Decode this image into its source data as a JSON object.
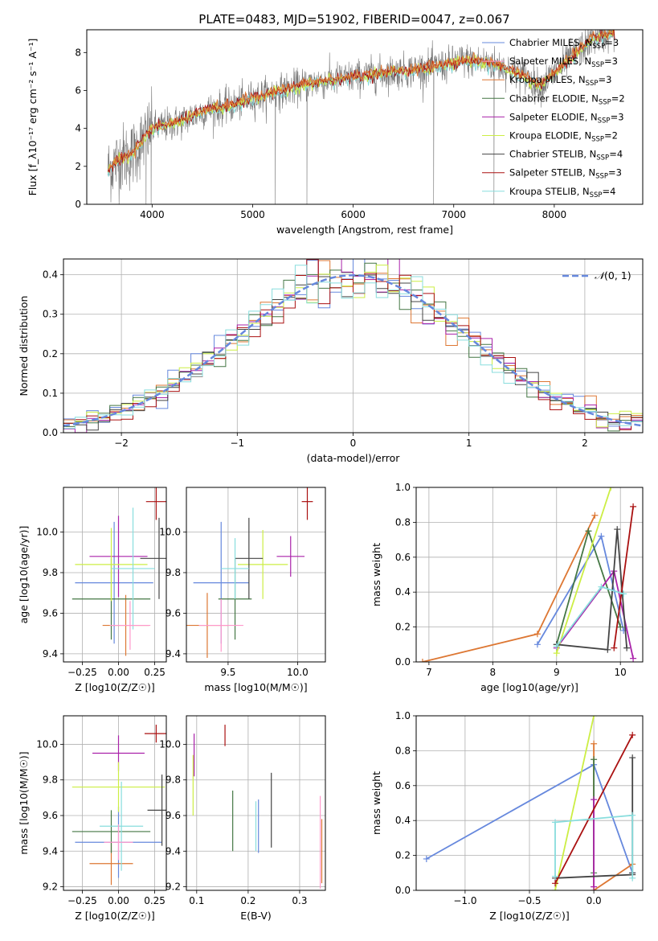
{
  "figure_title": "PLATE=0483, MJD=51902, FIBERID=0047, z=0.067",
  "colors": [
    "#6688dd",
    "#dd7733",
    "#447744",
    "#aa22aa",
    "#ccee44",
    "#444444",
    "#aa1111",
    "#88dddd",
    "#ff99cc",
    "#777777"
  ],
  "chart_data": [
    {
      "id": "spectrum",
      "type": "line",
      "xlabel": "wavelength [Angstrom, rest frame]",
      "ylabel": "Flux [f_λ10⁻¹⁷ erg cm⁻² s⁻¹ A⁻¹]",
      "xlim": [
        3350,
        8880
      ],
      "ylim": [
        0,
        9.2
      ],
      "xticks": [
        4000,
        5000,
        6000,
        7000,
        8000
      ],
      "yticks": [
        0,
        2,
        4,
        6,
        8
      ],
      "continuum_x": [
        3560,
        3700,
        3780,
        3900,
        4000,
        4100,
        4300,
        4500,
        4800,
        5000,
        5300,
        5600,
        6000,
        6300,
        6600,
        6900,
        7100,
        7400,
        7700,
        7850,
        8000,
        8200,
        8400,
        8600
      ],
      "continuum_y": [
        1.8,
        2.5,
        2.5,
        3.3,
        4.0,
        4.1,
        4.4,
        4.9,
        5.2,
        5.6,
        6.0,
        6.4,
        6.7,
        6.9,
        7.1,
        7.3,
        7.6,
        7.4,
        6.8,
        6.2,
        6.9,
        7.9,
        8.8,
        9.0
      ],
      "legend": [
        {
          "imf": "Chabrier",
          "lib": "MILES",
          "n": "3"
        },
        {
          "imf": "Salpeter",
          "lib": "MILES",
          "n": "3"
        },
        {
          "imf": "Kroupa",
          "lib": "MILES",
          "n": "3"
        },
        {
          "imf": "Chabrier",
          "lib": "ELODIE",
          "n": "2"
        },
        {
          "imf": "Salpeter",
          "lib": "ELODIE",
          "n": "3"
        },
        {
          "imf": "Kroupa",
          "lib": "ELODIE",
          "n": "2"
        },
        {
          "imf": "Chabrier",
          "lib": "STELIB",
          "n": "4"
        },
        {
          "imf": "Salpeter",
          "lib": "STELIB",
          "n": "3"
        },
        {
          "imf": "Kroupa",
          "lib": "STELIB",
          "n": "4"
        }
      ],
      "legend_sub": "SSP"
    },
    {
      "id": "residuals",
      "type": "step-histogram",
      "xlabel": "(data-model)/error",
      "ylabel": "Normed distribution",
      "xlim": [
        -2.5,
        2.5
      ],
      "ylim": [
        0,
        0.44
      ],
      "xticks": [
        -2,
        -1,
        0,
        1,
        2
      ],
      "yticks": [
        0.0,
        0.1,
        0.2,
        0.3,
        0.4
      ],
      "bin_width": 0.1,
      "gaussian_label": "N(0, 1)",
      "gaussian_symbol": "𝒩",
      "gaussian_args": "(0, 1)"
    },
    {
      "id": "age_vs_Z",
      "type": "errorbar",
      "xlabel": "Z [log10(Z/Z☉)]",
      "ylabel": "age  [log10(age/yr)]",
      "xlim": [
        -0.38,
        0.33
      ],
      "ylim": [
        9.36,
        10.22
      ],
      "xticks": [
        -0.25,
        0.0,
        0.25
      ],
      "yticks": [
        9.4,
        9.6,
        9.8,
        10.0
      ],
      "points": [
        {
          "c": 0,
          "x": -0.03,
          "y": 9.75,
          "xerr": 0.27,
          "yerr": 0.3
        },
        {
          "c": 1,
          "x": 0.05,
          "y": 9.54,
          "xerr": 0.16,
          "yerr": 0.15
        },
        {
          "c": 2,
          "x": -0.05,
          "y": 9.67,
          "xerr": 0.27,
          "yerr": 0.2
        },
        {
          "c": 3,
          "x": 0.0,
          "y": 9.88,
          "xerr": 0.2,
          "yerr": 0.2
        },
        {
          "c": 4,
          "x": -0.05,
          "y": 9.84,
          "xerr": 0.25,
          "yerr": 0.18
        },
        {
          "c": 5,
          "x": 0.28,
          "y": 9.87,
          "xerr": 0.13,
          "yerr": 0.2
        },
        {
          "c": 6,
          "x": 0.26,
          "y": 10.15,
          "xerr": 0.07,
          "yerr": 0.09
        },
        {
          "c": 7,
          "x": 0.1,
          "y": 9.82,
          "xerr": 0.15,
          "yerr": 0.3
        },
        {
          "c": 8,
          "x": 0.08,
          "y": 9.54,
          "xerr": 0.14,
          "yerr": 0.12
        }
      ]
    },
    {
      "id": "age_vs_mass",
      "type": "errorbar",
      "xlabel": "mass [log10(M/M☉)]",
      "ylabel": "",
      "xlim": [
        9.2,
        10.2
      ],
      "ylim": [
        9.36,
        10.22
      ],
      "xticks": [
        9.5,
        10.0
      ],
      "yticks": [
        9.4,
        9.6,
        9.8,
        10.0
      ],
      "points": [
        {
          "c": 0,
          "x": 9.45,
          "y": 9.75,
          "xerr": 0.2,
          "yerr": 0.3
        },
        {
          "c": 1,
          "x": 9.35,
          "y": 9.54,
          "xerr": 0.15,
          "yerr": 0.16
        },
        {
          "c": 2,
          "x": 9.55,
          "y": 9.67,
          "xerr": 0.12,
          "yerr": 0.2
        },
        {
          "c": 3,
          "x": 9.95,
          "y": 9.88,
          "xerr": 0.1,
          "yerr": 0.1
        },
        {
          "c": 4,
          "x": 9.75,
          "y": 9.84,
          "xerr": 0.18,
          "yerr": 0.17
        },
        {
          "c": 5,
          "x": 9.65,
          "y": 9.87,
          "xerr": 0.1,
          "yerr": 0.2
        },
        {
          "c": 6,
          "x": 10.07,
          "y": 10.15,
          "xerr": 0.04,
          "yerr": 0.09
        },
        {
          "c": 7,
          "x": 9.55,
          "y": 9.82,
          "xerr": 0.1,
          "yerr": 0.15
        },
        {
          "c": 8,
          "x": 9.45,
          "y": 9.54,
          "xerr": 0.16,
          "yerr": 0.13
        }
      ]
    },
    {
      "id": "weight_vs_age",
      "type": "line",
      "xlabel": "age  [log10(age/yr)]",
      "ylabel": "mass weight",
      "xlim": [
        6.8,
        10.35
      ],
      "ylim": [
        0,
        1.0
      ],
      "xticks": [
        7,
        8,
        9,
        10
      ],
      "yticks": [
        0.0,
        0.2,
        0.4,
        0.6,
        0.8,
        1.0
      ],
      "series": [
        {
          "c": 0,
          "x": [
            8.7,
            9.7,
            10.05
          ],
          "y": [
            0.1,
            0.72,
            0.18
          ]
        },
        {
          "c": 1,
          "x": [
            6.9,
            8.7,
            9.6
          ],
          "y": [
            0.0,
            0.16,
            0.84
          ]
        },
        {
          "c": 2,
          "x": [
            9.0,
            9.5,
            10.0
          ],
          "y": [
            0.1,
            0.75,
            0.2
          ]
        },
        {
          "c": 3,
          "x": [
            9.0,
            9.9,
            10.2
          ],
          "y": [
            0.08,
            0.52,
            0.02
          ]
        },
        {
          "c": 4,
          "x": [
            9.0,
            9.85
          ],
          "y": [
            0.05,
            1.0
          ]
        },
        {
          "c": 5,
          "x": [
            9.0,
            9.8,
            9.95,
            10.1
          ],
          "y": [
            0.1,
            0.07,
            0.76,
            0.08
          ]
        },
        {
          "c": 6,
          "x": [
            9.9,
            10.2
          ],
          "y": [
            0.08,
            0.89
          ]
        },
        {
          "c": 7,
          "x": [
            9.0,
            9.7,
            10.05
          ],
          "y": [
            0.09,
            0.43,
            0.39
          ]
        }
      ]
    },
    {
      "id": "mass_vs_Z",
      "type": "errorbar",
      "xlabel": "Z [log10(Z/Z☉)]",
      "ylabel": "mass [log10(M/M☉)]",
      "xlim": [
        -0.38,
        0.33
      ],
      "ylim": [
        9.18,
        10.16
      ],
      "xticks": [
        -0.25,
        0.0,
        0.25
      ],
      "yticks": [
        9.2,
        9.4,
        9.6,
        9.8,
        10.0
      ],
      "points": [
        {
          "c": 0,
          "x": 0.0,
          "y": 9.45,
          "xerr": 0.3,
          "yerr": 0.2
        },
        {
          "c": 1,
          "x": -0.05,
          "y": 9.33,
          "xerr": 0.15,
          "yerr": 0.12
        },
        {
          "c": 2,
          "x": -0.05,
          "y": 9.51,
          "xerr": 0.27,
          "yerr": 0.12
        },
        {
          "c": 3,
          "x": 0.0,
          "y": 9.95,
          "xerr": 0.18,
          "yerr": 0.1
        },
        {
          "c": 4,
          "x": 0.0,
          "y": 9.76,
          "xerr": 0.32,
          "yerr": 0.14
        },
        {
          "c": 5,
          "x": 0.3,
          "y": 9.63,
          "xerr": 0.1,
          "yerr": 0.2
        },
        {
          "c": 6,
          "x": 0.26,
          "y": 10.06,
          "xerr": 0.08,
          "yerr": 0.05
        },
        {
          "c": 7,
          "x": 0.02,
          "y": 9.54,
          "xerr": 0.15,
          "yerr": 0.25
        },
        {
          "c": 8,
          "x": 0.0,
          "y": 9.45,
          "xerr": 0.1,
          "yerr": 0.1
        }
      ]
    },
    {
      "id": "mass_vs_ebv",
      "type": "errorbar",
      "xlabel": "E(B-V)",
      "ylabel": "",
      "xlim": [
        0.08,
        0.35
      ],
      "ylim": [
        9.18,
        10.16
      ],
      "xticks": [
        0.1,
        0.2,
        0.3
      ],
      "yticks": [
        9.2,
        9.4,
        9.6,
        9.8,
        10.0
      ],
      "points": [
        {
          "c": 0,
          "x": 0.22,
          "y": 9.54,
          "xerr": 0,
          "yerr": 0.15
        },
        {
          "c": 1,
          "x": 0.343,
          "y": 9.4,
          "xerr": 0,
          "yerr": 0.18
        },
        {
          "c": 2,
          "x": 0.17,
          "y": 9.57,
          "xerr": 0,
          "yerr": 0.17
        },
        {
          "c": 3,
          "x": 0.095,
          "y": 9.94,
          "xerr": 0,
          "yerr": 0.12
        },
        {
          "c": 4,
          "x": 0.093,
          "y": 9.77,
          "xerr": 0,
          "yerr": 0.17
        },
        {
          "c": 5,
          "x": 0.245,
          "y": 9.63,
          "xerr": 0,
          "yerr": 0.21
        },
        {
          "c": 6,
          "x": 0.155,
          "y": 10.05,
          "xerr": 0,
          "yerr": 0.06
        },
        {
          "c": 7,
          "x": 0.215,
          "y": 9.54,
          "xerr": 0,
          "yerr": 0.14
        },
        {
          "c": 8,
          "x": 0.34,
          "y": 9.45,
          "xerr": 0,
          "yerr": 0.26
        }
      ]
    },
    {
      "id": "weight_vs_Z",
      "type": "line",
      "xlabel": "Z [log10(Z/Z☉)]",
      "ylabel": "mass weight",
      "xlim": [
        -1.38,
        0.38
      ],
      "ylim": [
        0,
        1.0
      ],
      "xticks": [
        -1.0,
        -0.5,
        0.0
      ],
      "yticks": [
        0.0,
        0.2,
        0.4,
        0.6,
        0.8,
        1.0
      ],
      "series": [
        {
          "c": 0,
          "x": [
            -1.3,
            0.0,
            0.3
          ],
          "y": [
            0.18,
            0.72,
            0.1
          ]
        },
        {
          "c": 1,
          "x": [
            0.0,
            0.0,
            0.3
          ],
          "y": [
            0.84,
            0.0,
            0.15
          ]
        },
        {
          "c": 2,
          "x": [
            0.0,
            0.0
          ],
          "y": [
            0.75,
            0.1
          ]
        },
        {
          "c": 3,
          "x": [
            0.0,
            0.0
          ],
          "y": [
            0.52,
            0.02
          ]
        },
        {
          "c": 4,
          "x": [
            -0.3,
            0.0
          ],
          "y": [
            0.0,
            1.0
          ]
        },
        {
          "c": 5,
          "x": [
            -0.3,
            0.3,
            0.3,
            0.3
          ],
          "y": [
            0.07,
            0.09,
            0.76,
            0.1
          ]
        },
        {
          "c": 6,
          "x": [
            -0.3,
            0.3
          ],
          "y": [
            0.04,
            0.89
          ]
        },
        {
          "c": 7,
          "x": [
            -0.3,
            -0.3,
            0.3,
            0.3
          ],
          "y": [
            0.08,
            0.39,
            0.43,
            0.07
          ]
        }
      ]
    }
  ]
}
